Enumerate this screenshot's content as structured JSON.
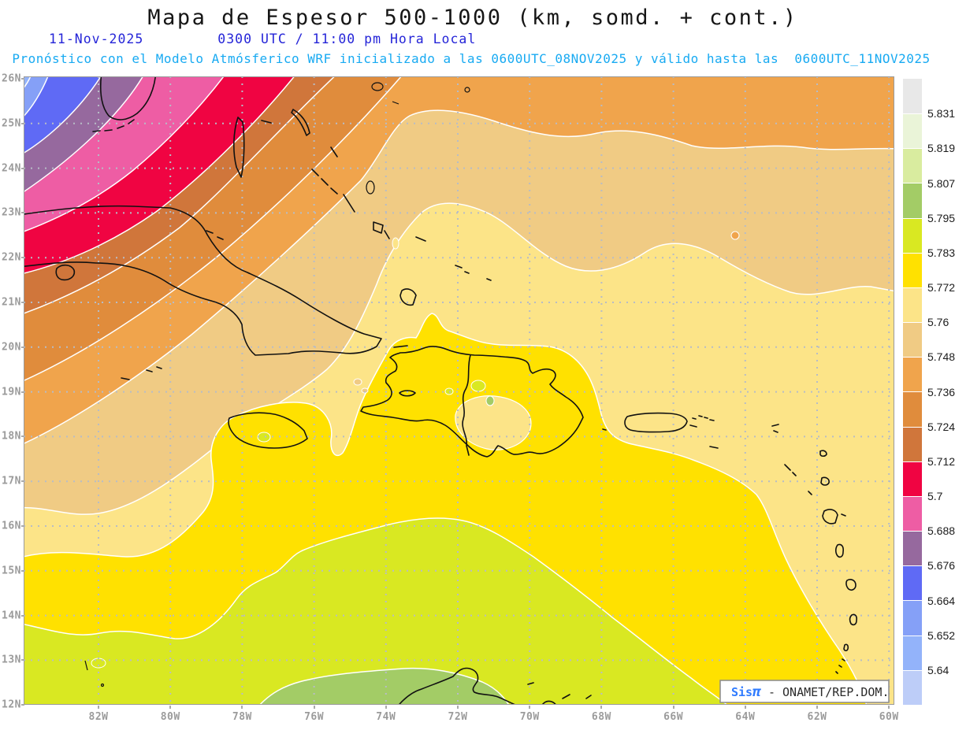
{
  "header": {
    "title": "Mapa de Espesor 500-1000 (km, somd. + cont.)",
    "date": "11-Nov-2025",
    "time": "0300 UTC / 11:00 pm Hora Local",
    "forecast_note": "Pronóstico con el Modelo Atmósferico WRF inicializado a las 0600UTC_08NOV2025 y válido hasta las  0600UTC_11NOV2025"
  },
  "map": {
    "lat_labels": [
      "26N",
      "25N",
      "24N",
      "23N",
      "22N",
      "21N",
      "20N",
      "19N",
      "18N",
      "17N",
      "16N",
      "15N",
      "14N",
      "13N",
      "12N"
    ],
    "lon_labels": [
      "82W",
      "80W",
      "78W",
      "76W",
      "74W",
      "72W",
      "70W",
      "68W",
      "66W",
      "64W",
      "62W",
      "60W"
    ]
  },
  "colorbar": {
    "boundary_values": [
      "5.831",
      "5.819",
      "5.807",
      "5.795",
      "5.783",
      "5.772",
      "5.76",
      "5.748",
      "5.736",
      "5.724",
      "5.712",
      "5.7",
      "5.688",
      "5.676",
      "5.664",
      "5.652",
      "5.64"
    ],
    "colors": [
      "#E8E8E8",
      "#EAF4D8",
      "#D9EC9F",
      "#A3CC66",
      "#D9E822",
      "#FFE100",
      "#FCE488",
      "#F0CB84",
      "#F0A44C",
      "#E08C3C",
      "#D0763B",
      "#F00442",
      "#EE5DA4",
      "#96699E",
      "#5F6AF5",
      "#85A0F7",
      "#93B3FA",
      "#BDCDF8"
    ]
  },
  "attribution": {
    "brand": "Sis",
    "pi": "π",
    "text": " - ONAMET/REP.DOM."
  },
  "colors": {
    "title_text": "#161616",
    "date_blue": "#2525d8",
    "forecast_cyan": "#18aaf2",
    "axis_gray": "#9b9b9b",
    "grid_dots": "#b7bcc6",
    "coastline": "#111111",
    "contour_white": "#ffffff",
    "attribution_brand_blue": "#2f7bff"
  }
}
